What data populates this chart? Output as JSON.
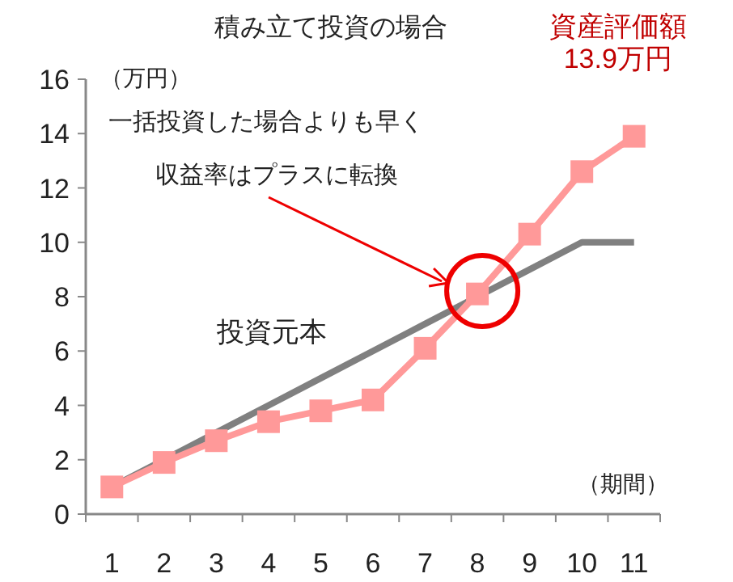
{
  "chart_data": {
    "type": "line",
    "title": "積み立て投資の場合",
    "ylabel": "（万円）",
    "xlabel": "（期間）",
    "categories": [
      "1",
      "2",
      "3",
      "4",
      "5",
      "6",
      "7",
      "8",
      "9",
      "10",
      "11"
    ],
    "series": [
      {
        "name": "投資元本",
        "color": "#808080",
        "values": [
          1,
          2,
          3,
          4,
          5,
          6,
          7,
          8,
          9,
          10,
          10
        ],
        "marker": "none"
      },
      {
        "color": "#ff9999",
        "values": [
          1.0,
          1.9,
          2.7,
          3.4,
          3.8,
          4.2,
          6.1,
          8.1,
          10.3,
          12.6,
          13.9
        ],
        "marker": "square",
        "value_labels": [
          null,
          null,
          null,
          null,
          null,
          null,
          null,
          null,
          null,
          null,
          "13.9万円"
        ]
      }
    ],
    "ylim": [
      0,
      16
    ],
    "yticks": [
      0,
      2,
      4,
      6,
      8,
      10,
      12,
      14,
      16
    ],
    "grid": false,
    "annotations": [
      "一括投資した場合よりも早く",
      "収益率はプラスに転換",
      "資産評価額"
    ]
  }
}
